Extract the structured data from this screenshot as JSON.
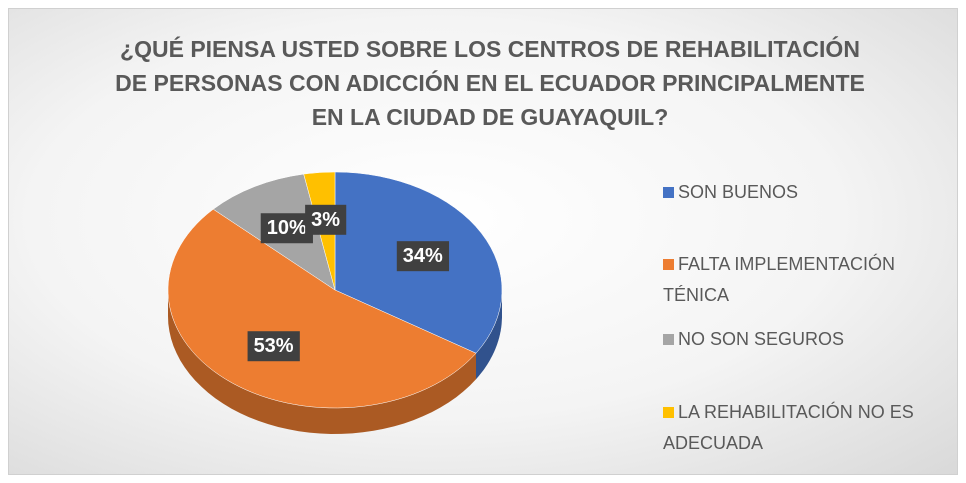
{
  "chart_data": {
    "type": "pie",
    "title": "¿QUÉ PIENSA USTED SOBRE LOS CENTROS DE REHABILITACIÓN DE PERSONAS CON ADICCIÓN EN EL ECUADOR PRINCIPALMENTE EN LA CIUDAD DE GUAYAQUIL?",
    "categories": [
      "SON BUENOS",
      "FALTA IMPLEMENTACIÓN TÉNICA",
      "NO SON SEGUROS",
      "LA REHABILITACIÓN NO ES ADECUADA"
    ],
    "values": [
      34,
      53,
      10,
      3
    ],
    "value_labels": [
      "34%",
      "53%",
      "10%",
      "3%"
    ],
    "colors": [
      "#4472c4",
      "#ed7d31",
      "#a5a5a5",
      "#ffc000"
    ],
    "legend": "right"
  }
}
